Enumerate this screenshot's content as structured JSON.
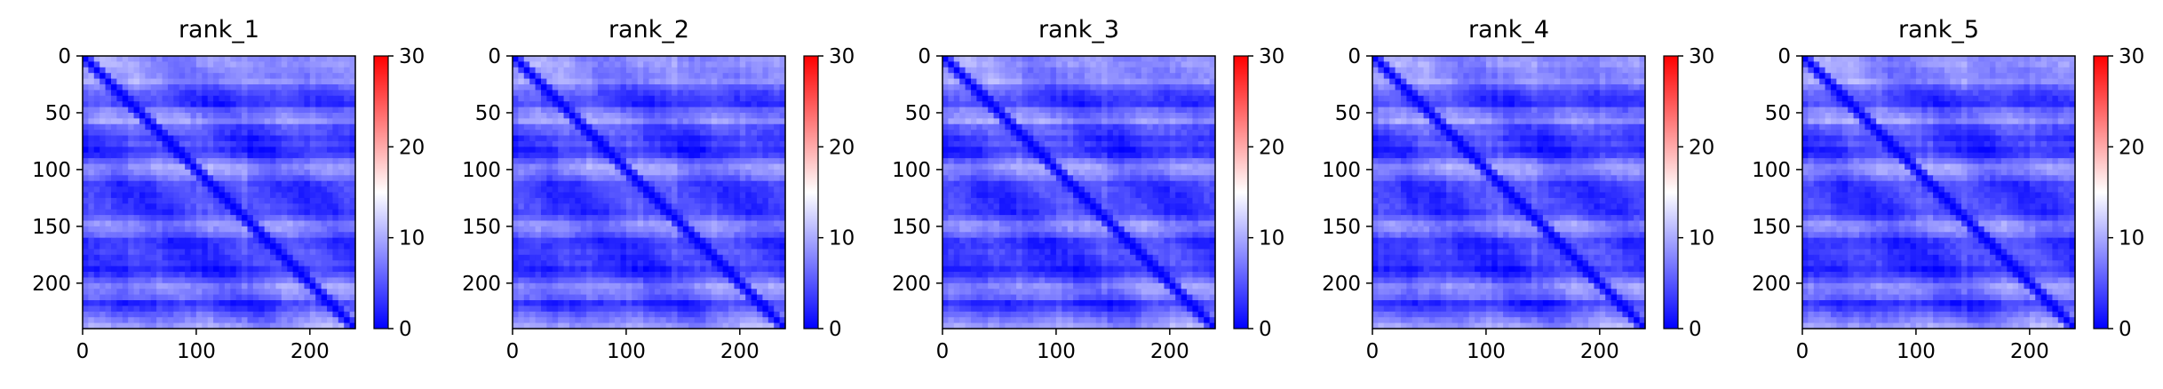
{
  "chart_data": [
    {
      "type": "heatmap",
      "title": "rank_1",
      "x_range": [
        0,
        240
      ],
      "y_range": [
        0,
        240
      ],
      "y_inverted": true,
      "x_ticks": [
        0,
        100,
        200
      ],
      "y_ticks": [
        0,
        50,
        100,
        150,
        200
      ],
      "colorbar": {
        "range": [
          0,
          30
        ],
        "ticks": [
          0,
          10,
          20,
          30
        ],
        "colormap": "bwr"
      },
      "grid": false
    },
    {
      "type": "heatmap",
      "title": "rank_2",
      "x_range": [
        0,
        240
      ],
      "y_range": [
        0,
        240
      ],
      "y_inverted": true,
      "x_ticks": [
        0,
        100,
        200
      ],
      "y_ticks": [
        0,
        50,
        100,
        150,
        200
      ],
      "colorbar": {
        "range": [
          0,
          30
        ],
        "ticks": [
          0,
          10,
          20,
          30
        ],
        "colormap": "bwr"
      },
      "grid": false
    },
    {
      "type": "heatmap",
      "title": "rank_3",
      "x_range": [
        0,
        240
      ],
      "y_range": [
        0,
        240
      ],
      "y_inverted": true,
      "x_ticks": [
        0,
        100,
        200
      ],
      "y_ticks": [
        0,
        50,
        100,
        150,
        200
      ],
      "colorbar": {
        "range": [
          0,
          30
        ],
        "ticks": [
          0,
          10,
          20,
          30
        ],
        "colormap": "bwr"
      },
      "grid": false
    },
    {
      "type": "heatmap",
      "title": "rank_4",
      "x_range": [
        0,
        240
      ],
      "y_range": [
        0,
        240
      ],
      "y_inverted": true,
      "x_ticks": [
        0,
        100,
        200
      ],
      "y_ticks": [
        0,
        50,
        100,
        150,
        200
      ],
      "colorbar": {
        "range": [
          0,
          30
        ],
        "ticks": [
          0,
          10,
          20,
          30
        ],
        "colormap": "bwr"
      },
      "grid": false
    },
    {
      "type": "heatmap",
      "title": "rank_5",
      "x_range": [
        0,
        240
      ],
      "y_range": [
        0,
        240
      ],
      "y_inverted": true,
      "x_ticks": [
        0,
        100,
        200
      ],
      "y_ticks": [
        0,
        50,
        100,
        150,
        200
      ],
      "colorbar": {
        "range": [
          0,
          30
        ],
        "ticks": [
          0,
          10,
          20,
          30
        ],
        "colormap": "bwr"
      },
      "grid": false
    }
  ],
  "colors": {
    "low": "#0000ff",
    "mid": "#ffffff",
    "high": "#ff0000"
  }
}
